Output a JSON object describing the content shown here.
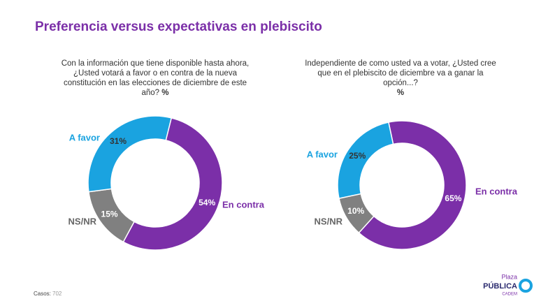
{
  "title": "Preferencia versus expectativas en plebiscito",
  "chart_data": [
    {
      "type": "pie",
      "donut": true,
      "title": "Con la información que tiene disponible hasta ahora, ¿Usted votará a favor o en contra de la nueva constitución en las elecciones de diciembre de este año?",
      "subtitle": "%",
      "categories": [
        "En contra",
        "NS/NR",
        "A favor"
      ],
      "values": [
        54,
        15,
        31
      ],
      "value_labels": [
        "54%",
        "15%",
        "31%"
      ],
      "colors": [
        "#7b2fa8",
        "#808080",
        "#1aa3e0"
      ]
    },
    {
      "type": "pie",
      "donut": true,
      "title": "Independiente de como usted va a votar, ¿Usted cree que en el plebiscito de diciembre va a ganar la opción...?",
      "subtitle": "%",
      "categories": [
        "En contra",
        "NS/NR",
        "A favor"
      ],
      "values": [
        65,
        10,
        25
      ],
      "value_labels": [
        "65%",
        "10%",
        "25%"
      ],
      "colors": [
        "#7b2fa8",
        "#808080",
        "#1aa3e0"
      ]
    }
  ],
  "footnote": {
    "label": "Casos:",
    "value": "702"
  },
  "logo": {
    "top": "Plaza",
    "main": "PÚBLICA",
    "bottom": "CADEM"
  }
}
